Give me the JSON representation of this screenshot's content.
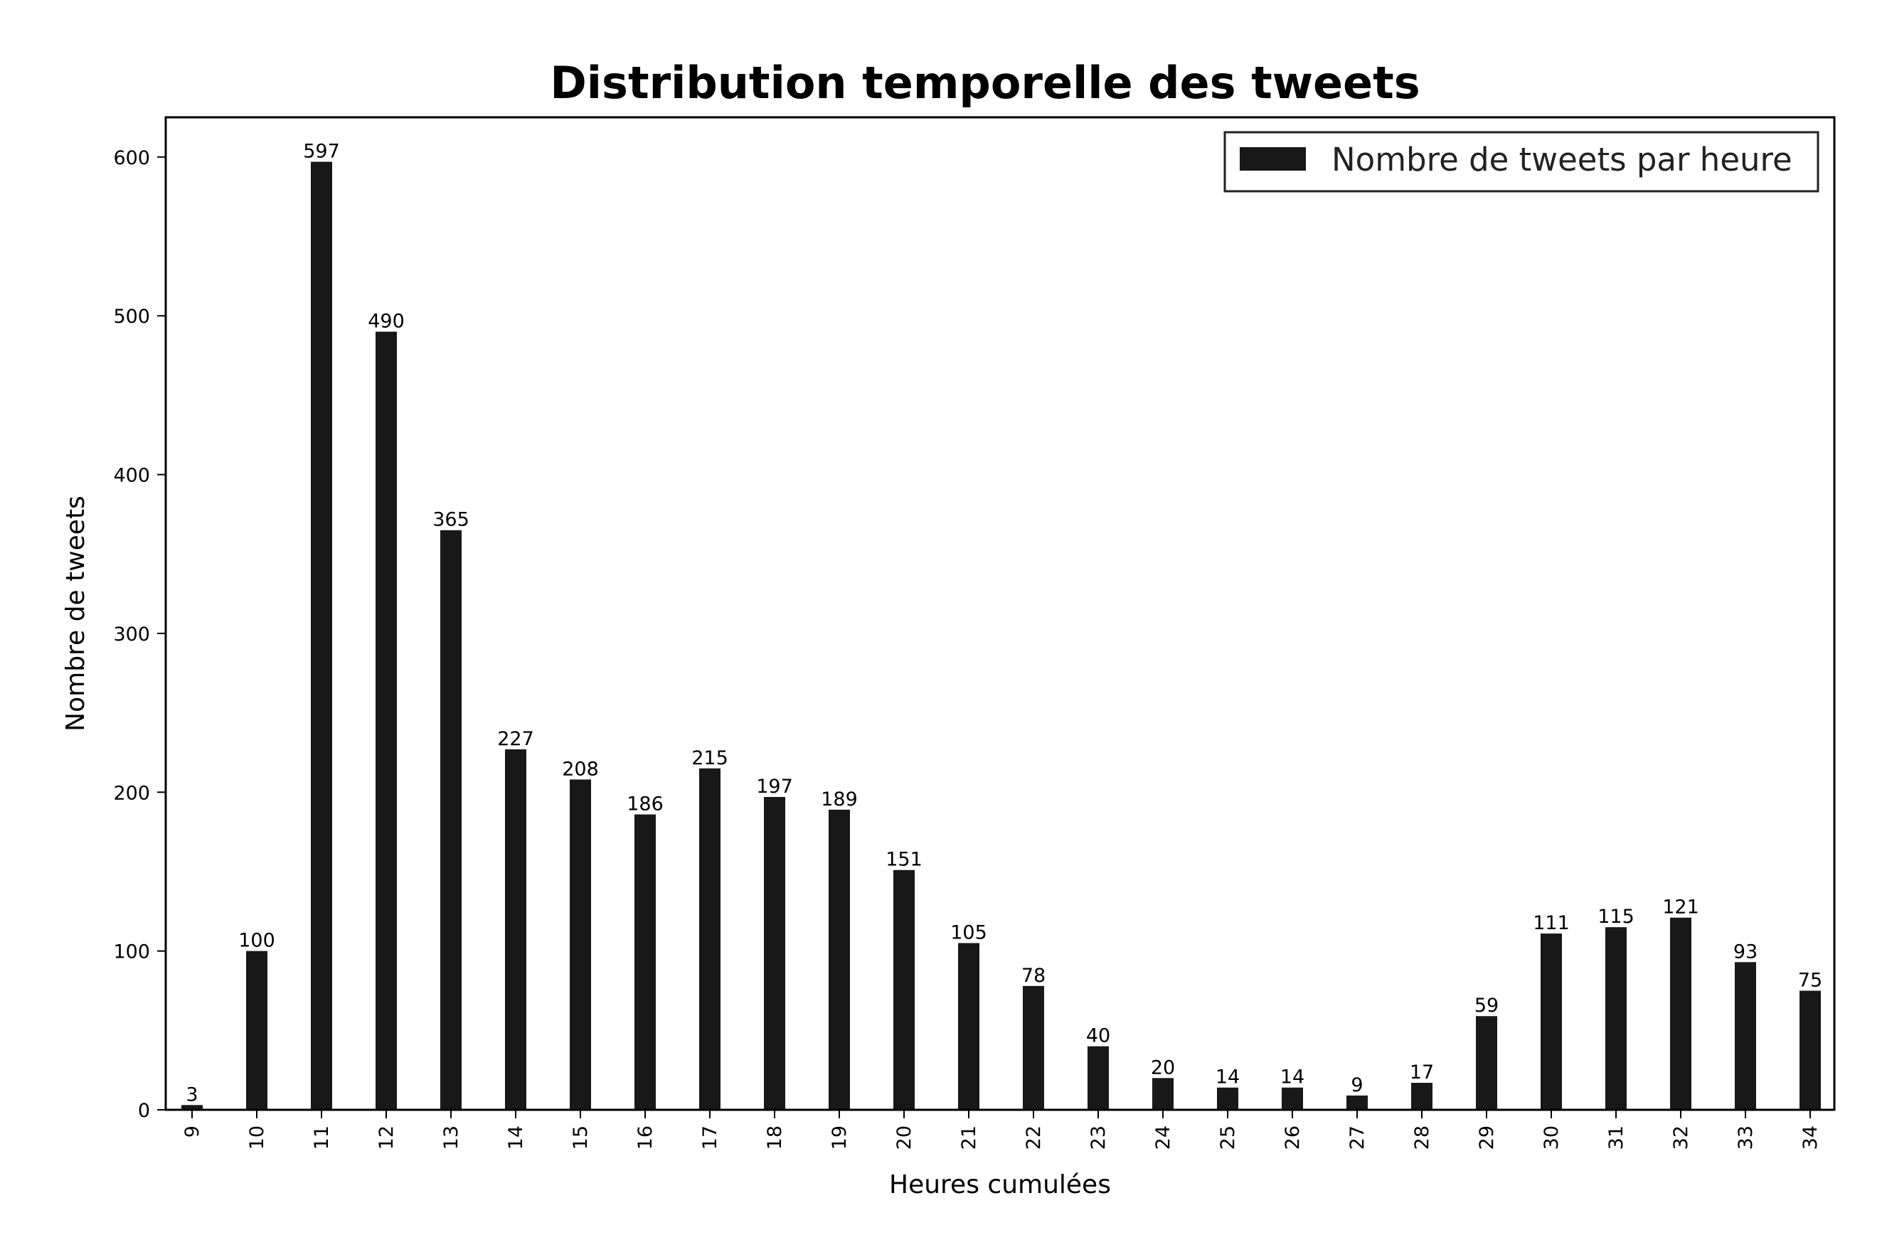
{
  "chart_data": {
    "type": "bar",
    "title": "Distribution temporelle des tweets",
    "xlabel": "Heures cumulées",
    "ylabel": "Nombre de tweets",
    "categories": [
      "9",
      "10",
      "11",
      "12",
      "13",
      "14",
      "15",
      "16",
      "17",
      "18",
      "19",
      "20",
      "21",
      "22",
      "23",
      "24",
      "25",
      "26",
      "27",
      "28",
      "29",
      "30",
      "31",
      "32",
      "33",
      "34"
    ],
    "series": [
      {
        "name": "Nombre de tweets par heure",
        "values": [
          3,
          100,
          597,
          490,
          365,
          227,
          208,
          186,
          215,
          197,
          189,
          151,
          105,
          78,
          40,
          20,
          14,
          14,
          9,
          17,
          59,
          111,
          115,
          121,
          93,
          75
        ]
      }
    ],
    "ylim": [
      0,
      625
    ],
    "yticks": [
      "0",
      "100",
      "200",
      "300",
      "400",
      "500",
      "600"
    ],
    "grid": false,
    "legend": "top-right",
    "colors": {
      "bar": "#181818",
      "axis": "#000000",
      "background": "#ffffff"
    }
  }
}
